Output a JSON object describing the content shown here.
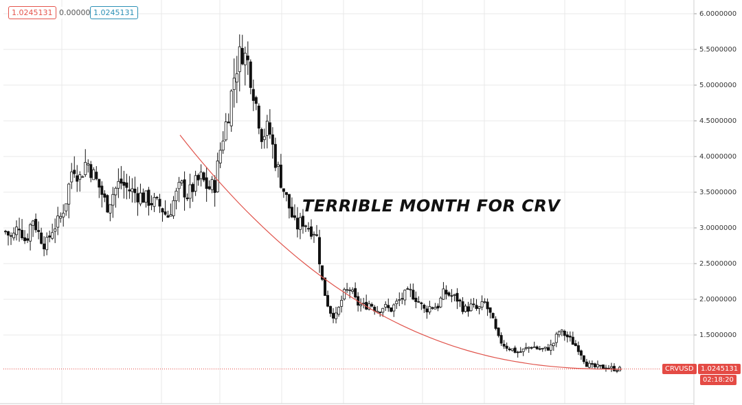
{
  "chart_data": {
    "type": "candlestick",
    "title": "TERRIBLE MONTH FOR CRV",
    "symbol": "CRVUSD",
    "ylim": [
      1.0,
      6.0
    ],
    "y_ticks": [
      "1.5000000",
      "2.0000000",
      "2.5000000",
      "3.0000000",
      "3.5000000",
      "4.0000000",
      "4.5000000",
      "5.0000000",
      "5.5000000",
      "6.0000000"
    ],
    "ohlc_header": {
      "open": "1.0245131",
      "change": "0.0000000",
      "close": "1.0245131"
    },
    "last_price": "1.0245131",
    "last_price_value": 1.0245131,
    "countdown": "02:18:20",
    "price_path": [
      2.95,
      2.85,
      3.05,
      2.8,
      3.15,
      2.9,
      2.75,
      3.0,
      3.1,
      3.4,
      3.9,
      3.7,
      3.95,
      3.75,
      3.55,
      3.3,
      3.5,
      3.65,
      3.55,
      3.5,
      3.45,
      3.4,
      3.35,
      3.3,
      3.15,
      3.4,
      3.6,
      3.45,
      3.6,
      3.7,
      3.55,
      3.6,
      4.2,
      4.6,
      5.2,
      5.5,
      5.3,
      4.8,
      4.3,
      4.4,
      3.95,
      3.6,
      3.3,
      3.0,
      3.1,
      3.0,
      2.95,
      2.2,
      1.85,
      1.75,
      2.05,
      2.15,
      1.95,
      1.9,
      1.95,
      1.85,
      1.9,
      1.85,
      1.95,
      2.05,
      2.1,
      2.0,
      1.85,
      1.9,
      1.9,
      2.1,
      2.05,
      2.0,
      1.85,
      1.9,
      1.85,
      1.95,
      1.75,
      1.45,
      1.35,
      1.3,
      1.25,
      1.3,
      1.35,
      1.3,
      1.3,
      1.35,
      1.55,
      1.5,
      1.4,
      1.3,
      1.1,
      1.05,
      1.05,
      1.05,
      1.03,
      1.02
    ],
    "trend_curve": {
      "start": 4.3,
      "end": 1.02
    },
    "grid": true,
    "colors": {
      "up": "#26a69a",
      "down": "#000000",
      "candle": "#111111",
      "trend": "#e0524a",
      "price_tag": "#e44b45",
      "grid": "#e8e8e8"
    }
  }
}
